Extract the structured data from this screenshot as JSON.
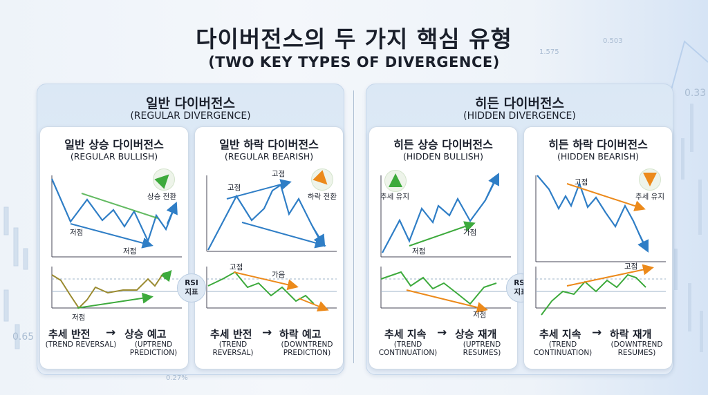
{
  "title": "다이버전스의 두 가지 핵심 유형",
  "subtitle": "(TWO KEY TYPES OF DIVERGENCE)",
  "background_numbers": [
    "1.575",
    "0.503",
    "0.33",
    "0.65",
    "0.27%"
  ],
  "colors": {
    "blue": "#2f7ec6",
    "green": "#3daa3c",
    "orange": "#ec8a1b",
    "panel": "#dbe8f5"
  },
  "rsi_label": {
    "line1": "RSI",
    "line2": "지표"
  },
  "groups": [
    {
      "title": "일반 다이버전스",
      "subtitle": "(REGULAR DIVERGENCE)"
    },
    {
      "title": "히든 다이버전스",
      "subtitle": "(HIDDEN DIVERGENCE)"
    }
  ],
  "cards": [
    {
      "title": "일반 상승 다이버전스",
      "subtitle": "(REGULAR BULLISH)",
      "labels": {
        "low1": "저점",
        "low2": "저점",
        "signal": "상승 전환",
        "rsi_low": "저점"
      },
      "badge_icon": "green-up-right-arrow-icon",
      "foot": {
        "left": "추세 반전",
        "right": "상승 예고",
        "left_en": "(TREND REVERSAL)",
        "right_en": "(UPTREND\nPREDICTION)"
      }
    },
    {
      "title": "일반 하락 다이버전스",
      "subtitle": "(REGULAR BEARISH)",
      "labels": {
        "high1": "고점",
        "high2": "고점",
        "signal": "하락 전환",
        "rsi_high": "고점",
        "rsi_high2": "가음"
      },
      "badge_icon": "orange-down-right-arrow-icon",
      "foot": {
        "left": "추세 반전",
        "right": "하락 예고",
        "left_en": "(TREND\nREVERSAL)",
        "right_en": "(DOWNTREND\nPREDICTION)"
      }
    },
    {
      "title": "히든 상승 다이버전스",
      "subtitle": "(HIDDEN BULLISH)",
      "labels": {
        "signal": "추세 유지",
        "low1": "저점",
        "low2": "가점",
        "rsi_low": "저점"
      },
      "badge_icon": "green-up-arrow-icon",
      "foot": {
        "left": "추세 지속",
        "right": "상승 재개",
        "left_en": "(TREND\nCONTINUATION)",
        "right_en": "(UPTREND\nRESUMES)"
      }
    },
    {
      "title": "히든 하락 다이버전스",
      "subtitle": "(HIDDEN BEARISH)",
      "labels": {
        "high1": "고점",
        "signal": "추세 유지",
        "rsi_high": "고점"
      },
      "badge_icon": "orange-down-arrow-icon",
      "foot": {
        "left": "추세 지속",
        "right": "하락 재개",
        "left_en": "(TREND\nCONTINUATION)",
        "right_en": "(DOWNTREND\nRESUMES)"
      }
    }
  ]
}
